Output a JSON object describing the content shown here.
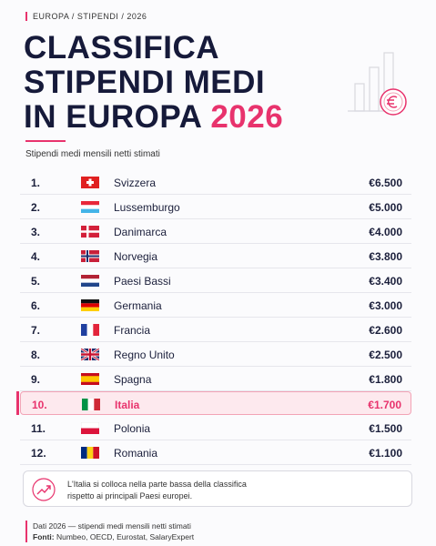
{
  "header": {
    "breadcrumb": "EUROPA / STIPENDI / 2026",
    "title_lines": [
      "CLASSIFICA",
      "STIPENDI MEDI",
      "IN EUROPA"
    ],
    "title_highlight": "2026",
    "subtitle": "Stipendi medi mensili netti stimati"
  },
  "table": {
    "rows": [
      [
        "1.",
        "Svizzera",
        "€6.500"
      ],
      [
        "2.",
        "Lussemburgo",
        "€5.000"
      ],
      [
        "3.",
        "Danimarca",
        "€4.000"
      ],
      [
        "4.",
        "Norvegia",
        "€3.800"
      ],
      [
        "5.",
        "Paesi Bassi",
        "€3.400"
      ],
      [
        "6.",
        "Germania",
        "€3.000"
      ],
      [
        "7.",
        "Francia",
        "€2.600"
      ],
      [
        "8.",
        "Regno Unito",
        "€2.500"
      ],
      [
        "9.",
        "Spagna",
        "€1.800"
      ],
      [
        "10.",
        "Italia",
        "€1.700"
      ],
      [
        "11.",
        "Polonia",
        "€1.500"
      ],
      [
        "12.",
        "Romania",
        "€1.100"
      ]
    ],
    "highlight_row": 9
  },
  "note": "L'Italia si colloca nella parte bassa della classifica rispetto ai principali Paesi europei.",
  "footer": {
    "data": "Dati 2026 — stipendi medi mensili netti stimati",
    "sources_label": "Fonti:",
    "sources": "Numbeo, OECD, Eurostat, SalaryExpert"
  }
}
